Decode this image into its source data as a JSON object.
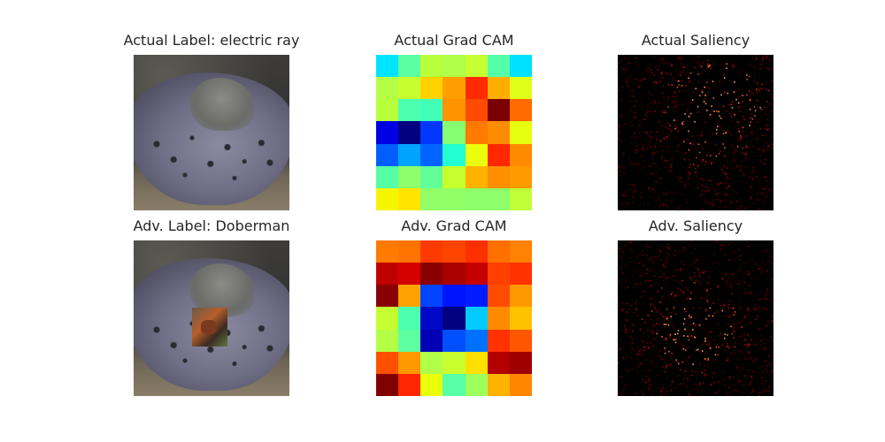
{
  "panels": [
    {
      "title": "Actual Label: electric ray",
      "type": "photo",
      "icon": "electric-ray-photo"
    },
    {
      "title": "Actual Grad CAM",
      "type": "heatmap"
    },
    {
      "title": "Actual Saliency",
      "type": "saliency"
    },
    {
      "title": "Adv. Label: Doberman",
      "type": "photo-patched",
      "icon": "electric-ray-photo-with-adversarial-patch"
    },
    {
      "title": "Adv. Grad CAM",
      "type": "heatmap"
    },
    {
      "title": "Adv. Saliency",
      "type": "saliency"
    }
  ],
  "gradcam": {
    "actual": [
      [
        "#00e5ff",
        "#5bffa0",
        "#b8ff3c",
        "#b0ff48",
        "#c6ff32",
        "#53ffa8",
        "#00e1ff"
      ],
      [
        "#b4ff45",
        "#c7ff2e",
        "#ffd200",
        "#ff9e00",
        "#ff2a00",
        "#ffae00",
        "#e0ff18"
      ],
      [
        "#b8ff3c",
        "#4cffaf",
        "#42ffb8",
        "#ff9400",
        "#ff4a00",
        "#7a0000",
        "#ff6a00"
      ],
      [
        "#0000e6",
        "#000080",
        "#0038ff",
        "#86ff71",
        "#ff7a00",
        "#ff8c00",
        "#e6ff11"
      ],
      [
        "#005eff",
        "#00a4ff",
        "#0064ff",
        "#23ffd3",
        "#ecff0a",
        "#ff2800",
        "#ff8a00"
      ],
      [
        "#55ffa6",
        "#8cff6b",
        "#62ff98",
        "#c8ff2e",
        "#ffb200",
        "#ff8e00",
        "#ff9a00"
      ],
      [
        "#f6f500",
        "#ffe500",
        "#90ff68",
        "#92ff66",
        "#8cff6b",
        "#8cff6b",
        "#c0ff37"
      ]
    ],
    "adversarial": [
      [
        "#ff7a00",
        "#ff7400",
        "#ff3a00",
        "#ff4400",
        "#ff3000",
        "#ff7000",
        "#ff8200"
      ],
      [
        "#bf0000",
        "#d50000",
        "#8a0000",
        "#a90000",
        "#c50000",
        "#ff4000",
        "#ff3200"
      ],
      [
        "#8a0000",
        "#ffa200",
        "#0044ff",
        "#0014ff",
        "#001cff",
        "#ff4c00",
        "#ff9800"
      ],
      [
        "#c6ff31",
        "#4cffaf",
        "#0008c8",
        "#000080",
        "#00caff",
        "#ff8a00",
        "#ffc200"
      ],
      [
        "#b4ff45",
        "#5effa0",
        "#0000b4",
        "#0050ff",
        "#0070ff",
        "#ff3200",
        "#ff5600"
      ],
      [
        "#ff5000",
        "#ff9800",
        "#b0ff48",
        "#caff2e",
        "#ffe000",
        "#b30000",
        "#9e0000"
      ],
      [
        "#800000",
        "#ff2600",
        "#eaff0c",
        "#58ffa4",
        "#9cff5c",
        "#ffb200",
        "#ff8600"
      ]
    ]
  }
}
